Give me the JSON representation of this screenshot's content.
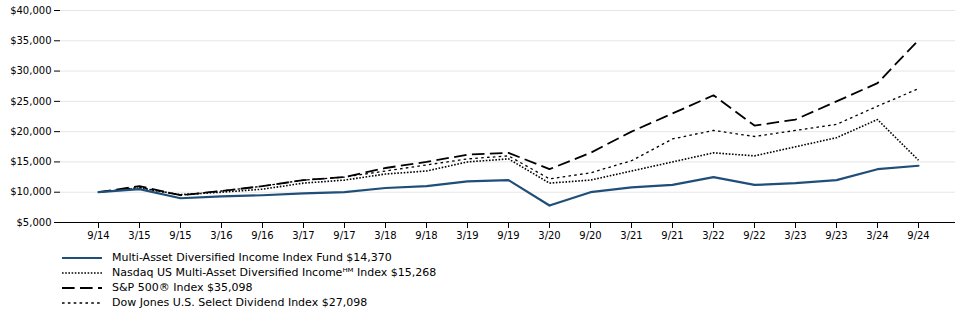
{
  "chart_data": {
    "type": "line",
    "categories": [
      "9/14",
      "3/15",
      "9/15",
      "3/16",
      "9/16",
      "3/17",
      "9/17",
      "3/18",
      "9/18",
      "3/19",
      "9/19",
      "3/20",
      "9/20",
      "3/21",
      "9/21",
      "3/22",
      "9/22",
      "3/23",
      "9/23",
      "3/24",
      "9/24"
    ],
    "series": [
      {
        "name": "Multi-Asset Diversified Income Index Fund $14,370",
        "color": "#1f4e79",
        "line_style": "solid",
        "values": [
          10000,
          10500,
          9000,
          9300,
          9500,
          9800,
          10000,
          10700,
          11000,
          11800,
          12000,
          7800,
          10000,
          10800,
          11200,
          12500,
          11200,
          11500,
          12000,
          13800,
          14370
        ]
      },
      {
        "name": "Nasdaq US Multi-Asset Diversified Incomeᴴᴹ Index $15,268",
        "color": "#000000",
        "line_style": "densely dotted",
        "values": [
          10000,
          10700,
          9600,
          10000,
          10500,
          11500,
          12000,
          13000,
          13500,
          15000,
          15500,
          11500,
          12000,
          13500,
          15000,
          16500,
          16000,
          17500,
          19000,
          22000,
          15268
        ]
      },
      {
        "name": "S&P 500® Index $35,098",
        "color": "#000000",
        "line_style": "dashed",
        "values": [
          10000,
          11000,
          9500,
          10200,
          11000,
          12000,
          12500,
          14000,
          15000,
          16200,
          16500,
          13800,
          16500,
          20000,
          23000,
          26000,
          21000,
          22000,
          25000,
          28000,
          35098
        ]
      },
      {
        "name": "Dow Jones U.S. Select Dividend Index $27,098",
        "color": "#000000",
        "line_style": "dotted",
        "values": [
          10000,
          10800,
          9500,
          10200,
          11000,
          12000,
          12500,
          13500,
          14500,
          15500,
          16000,
          12200,
          13200,
          15200,
          18800,
          20200,
          19200,
          20200,
          21200,
          24200,
          27098
        ]
      }
    ],
    "ylim": [
      5000,
      40000
    ],
    "yticks": [
      {
        "value": 5000,
        "label": "$5,000"
      },
      {
        "value": 10000,
        "label": "$10,000"
      },
      {
        "value": 15000,
        "label": "$15,000"
      },
      {
        "value": 20000,
        "label": "$20,000"
      },
      {
        "value": 25000,
        "label": "$25,000"
      },
      {
        "value": 30000,
        "label": "$30,000"
      },
      {
        "value": 35000,
        "label": "$35,000"
      },
      {
        "value": 40000,
        "label": "$40,000"
      }
    ],
    "grid": true,
    "legend": "bottom"
  }
}
